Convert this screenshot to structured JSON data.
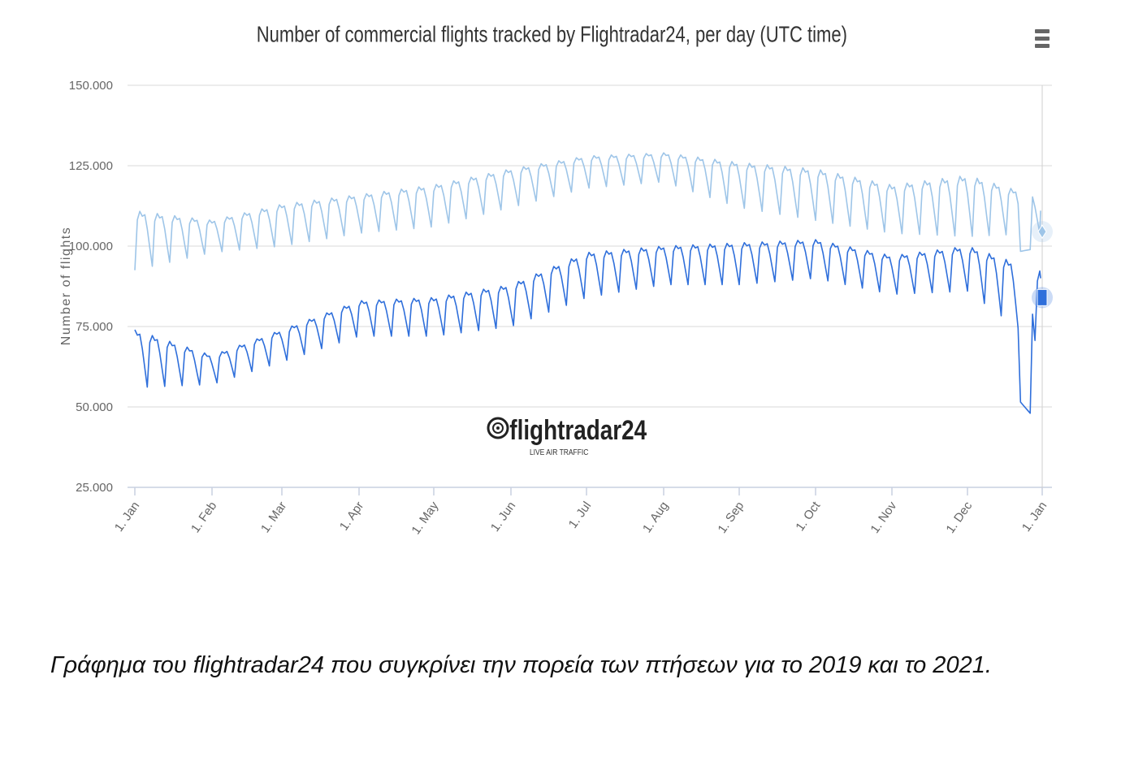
{
  "chart_data": {
    "type": "line",
    "title": "Number of commercial flights tracked by Flightradar24, per day (UTC time)",
    "ylabel": "Number of flights",
    "xlabel": "",
    "ylim": [
      25000,
      150000
    ],
    "yticks": [
      {
        "value": 150000,
        "label": "150.000"
      },
      {
        "value": 125000,
        "label": "125.000"
      },
      {
        "value": 100000,
        "label": "100.000"
      },
      {
        "value": 75000,
        "label": "75.000"
      },
      {
        "value": 50000,
        "label": "50.000"
      },
      {
        "value": 25000,
        "label": "25.000"
      }
    ],
    "xticks": [
      "1. Jan",
      "1. Feb",
      "1. Mar",
      "1. Apr",
      "1. May",
      "1. Jun",
      "1. Jul",
      "1. Aug",
      "1. Sep",
      "1. Oct",
      "1. Nov",
      "1. Dec",
      "1. Jan"
    ],
    "grid": true,
    "series": [
      {
        "color": "#9ec5e8",
        "weekly_anchors": [
          [
            "1. Jan",
            92500,
            111000,
            109000
          ],
          [
            "1. Feb",
            98000,
            108000,
            105000
          ],
          [
            "1. Mar",
            100000,
            113000,
            111000
          ],
          [
            "1. Apr",
            104000,
            116000,
            114000
          ],
          [
            "1. May",
            106000,
            119000,
            116000
          ],
          [
            "1. Jun",
            112000,
            124000,
            121000
          ],
          [
            "1. Jul",
            118000,
            128000,
            126000
          ],
          [
            "1. Aug",
            120000,
            129000,
            127000
          ],
          [
            "1. Sep",
            112000,
            126000,
            122000
          ],
          [
            "1. Oct",
            108000,
            124000,
            121000
          ],
          [
            "1. Nov",
            104000,
            119000,
            116000
          ],
          [
            "1. Dec",
            103000,
            122000,
            118000
          ],
          [
            "1. Jan",
            104000,
            115000,
            111000
          ]
        ],
        "end_marker_value": 104500
      },
      {
        "color": "#2f6fdb",
        "weekly_anchors": [
          [
            "1. Jan",
            56000,
            74000,
            70000
          ],
          [
            "1. Feb",
            57000,
            66000,
            63000
          ],
          [
            "1. Mar",
            64000,
            74000,
            71000
          ],
          [
            "1. Apr",
            72000,
            83000,
            79000
          ],
          [
            "1. May",
            72000,
            84000,
            80000
          ],
          [
            "1. Jun",
            75000,
            88000,
            85000
          ],
          [
            "1. Jul",
            84000,
            98000,
            95000
          ],
          [
            "1. Aug",
            88000,
            100000,
            96000
          ],
          [
            "1. Sep",
            88000,
            101000,
            97000
          ],
          [
            "1. Oct",
            90000,
            102000,
            99000
          ],
          [
            "1. Nov",
            85000,
            97000,
            94000
          ],
          [
            "1. Dec",
            86000,
            100000,
            96000
          ],
          [
            "1. Jan",
            69000,
            92000,
            90000
          ]
        ],
        "end_marker_value": 84000
      }
    ],
    "watermark": {
      "brand": "flightradar24",
      "tagline": "LIVE AIR TRAFFIC"
    }
  },
  "caption": "Γράφημα του flightradar24 που συγκρίνει την πορεία των πτήσεων για το 2019 και το 2021.",
  "icons": {
    "menu": "hamburger-menu-icon"
  }
}
